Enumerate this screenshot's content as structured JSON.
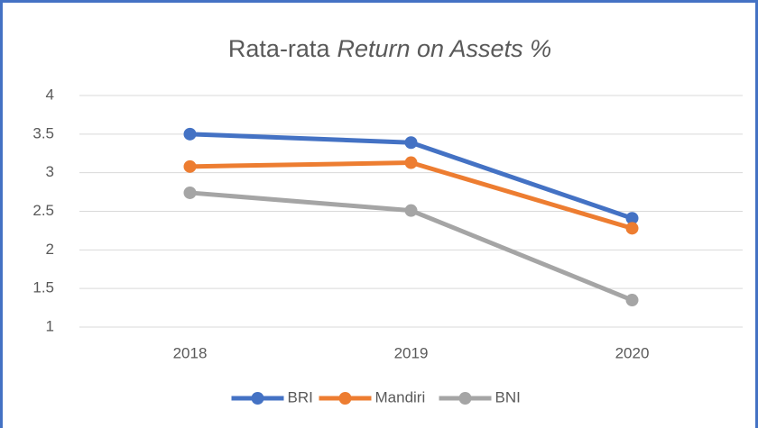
{
  "chart_data": {
    "type": "line",
    "title": [
      "Rata-rata",
      "Return on Assets %"
    ],
    "categories": [
      "2018",
      "2019",
      "2020"
    ],
    "series": [
      {
        "name": "BRI",
        "color": "#4472c4",
        "values": [
          3.5,
          3.39,
          2.41
        ]
      },
      {
        "name": "Mandiri",
        "color": "#ed7d31",
        "values": [
          3.08,
          3.13,
          2.28
        ]
      },
      {
        "name": "BNI",
        "color": "#a5a5a5",
        "values": [
          2.74,
          2.51,
          1.35
        ]
      }
    ],
    "ylim": [
      1,
      4
    ],
    "yticks": [
      1,
      1.5,
      2,
      2.5,
      3,
      3.5,
      4
    ],
    "grid": true,
    "legend": "bottom"
  }
}
